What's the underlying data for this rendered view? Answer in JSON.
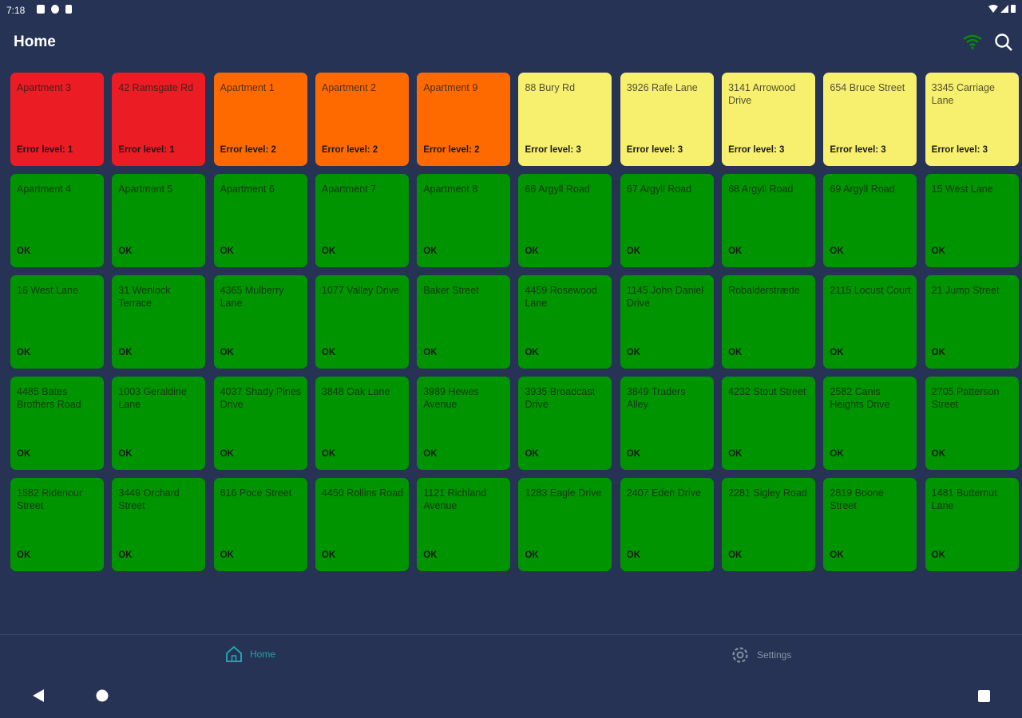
{
  "status_bar": {
    "time": "7:18"
  },
  "header": {
    "title": "Home"
  },
  "colors": {
    "error1": "#ec1c24",
    "error2": "#ff6a00",
    "error3": "#f7ef6e",
    "ok": "#009400",
    "background": "#263354",
    "active_nav": "#1fa3b0"
  },
  "tiles": [
    {
      "name": "Apartment 3",
      "status": "Error level: 1",
      "level": "error1"
    },
    {
      "name": "42  Ramsgate Rd",
      "status": "Error level: 1",
      "level": "error1"
    },
    {
      "name": "Apartment 1",
      "status": "Error level: 2",
      "level": "error2"
    },
    {
      "name": "Apartment 2",
      "status": "Error level: 2",
      "level": "error2"
    },
    {
      "name": "Apartment 9",
      "status": "Error level: 2",
      "level": "error2"
    },
    {
      "name": "88  Bury Rd",
      "status": "Error level: 3",
      "level": "error3"
    },
    {
      "name": "3926  Rafe Lane",
      "status": "Error level: 3",
      "level": "error3"
    },
    {
      "name": "3141  Arrowood Drive",
      "status": "Error level: 3",
      "level": "error3"
    },
    {
      "name": "654  Bruce Street",
      "status": "Error level: 3",
      "level": "error3"
    },
    {
      "name": "3345  Carriage Lane",
      "status": "Error level: 3",
      "level": "error3"
    },
    {
      "name": "Apartment 4",
      "status": "OK",
      "level": "ok"
    },
    {
      "name": "Apartment 5",
      "status": "OK",
      "level": "ok"
    },
    {
      "name": "Apartment 6",
      "status": "OK",
      "level": "ok"
    },
    {
      "name": "Apartment 7",
      "status": "OK",
      "level": "ok"
    },
    {
      "name": "Apartment 8",
      "status": "OK",
      "level": "ok"
    },
    {
      "name": "66  Argyll Road",
      "status": "OK",
      "level": "ok"
    },
    {
      "name": "67 Argyll Road",
      "status": "OK",
      "level": "ok"
    },
    {
      "name": "68 Argyll Road",
      "status": "OK",
      "level": "ok"
    },
    {
      "name": "69 Argyll Road",
      "status": "OK",
      "level": "ok"
    },
    {
      "name": "15  West Lane",
      "status": "OK",
      "level": "ok"
    },
    {
      "name": "16 West Lane",
      "status": "OK",
      "level": "ok"
    },
    {
      "name": "31  Wenlock Terrace",
      "status": "OK",
      "level": "ok"
    },
    {
      "name": "4365  Mulberry Lane",
      "status": "OK",
      "level": "ok"
    },
    {
      "name": "1077  Valley Drive",
      "status": "OK",
      "level": "ok"
    },
    {
      "name": "Baker Street",
      "status": "OK",
      "level": "ok"
    },
    {
      "name": "4459 Rosewood Lane",
      "status": "OK",
      "level": "ok"
    },
    {
      "name": "1145  John Daniel Drive",
      "status": "OK",
      "level": "ok"
    },
    {
      "name": "Robalderstræde",
      "status": "OK",
      "level": "ok"
    },
    {
      "name": "2115  Locust Court",
      "status": "OK",
      "level": "ok"
    },
    {
      "name": "21 Jump Street",
      "status": "OK",
      "level": "ok"
    },
    {
      "name": "4485  Bates Brothers Road",
      "status": "OK",
      "level": "ok"
    },
    {
      "name": "1003  Geraldine Lane",
      "status": "OK",
      "level": "ok"
    },
    {
      "name": "4037  Shady Pines Drive",
      "status": "OK",
      "level": "ok"
    },
    {
      "name": "3848  Oak Lane",
      "status": "OK",
      "level": "ok"
    },
    {
      "name": "3989  Hewes Avenue",
      "status": "OK",
      "level": "ok"
    },
    {
      "name": "3935 Broadcast Drive",
      "status": "OK",
      "level": "ok"
    },
    {
      "name": "3849  Traders Alley",
      "status": "OK",
      "level": "ok"
    },
    {
      "name": "4232  Stout Street",
      "status": "OK",
      "level": "ok"
    },
    {
      "name": "2582  Canis Heights Drive",
      "status": "OK",
      "level": "ok"
    },
    {
      "name": "2705  Patterson Street",
      "status": "OK",
      "level": "ok"
    },
    {
      "name": "1582  Ridenour Street",
      "status": "OK",
      "level": "ok"
    },
    {
      "name": "3449  Orchard Street",
      "status": "OK",
      "level": "ok"
    },
    {
      "name": "616  Poce Street",
      "status": "OK",
      "level": "ok"
    },
    {
      "name": "4450  Rollins Road",
      "status": "OK",
      "level": "ok"
    },
    {
      "name": "1121  Richland Avenue",
      "status": "OK",
      "level": "ok"
    },
    {
      "name": "1283  Eagle Drive",
      "status": "OK",
      "level": "ok"
    },
    {
      "name": "2407  Eden Drive",
      "status": "OK",
      "level": "ok"
    },
    {
      "name": "2281  Sigley Road",
      "status": "OK",
      "level": "ok"
    },
    {
      "name": "2819  Boone Street",
      "status": "OK",
      "level": "ok"
    },
    {
      "name": "1481  Butternut Lane",
      "status": "OK",
      "level": "ok"
    }
  ],
  "bottom_nav": {
    "home_label": "Home",
    "settings_label": "Settings"
  }
}
